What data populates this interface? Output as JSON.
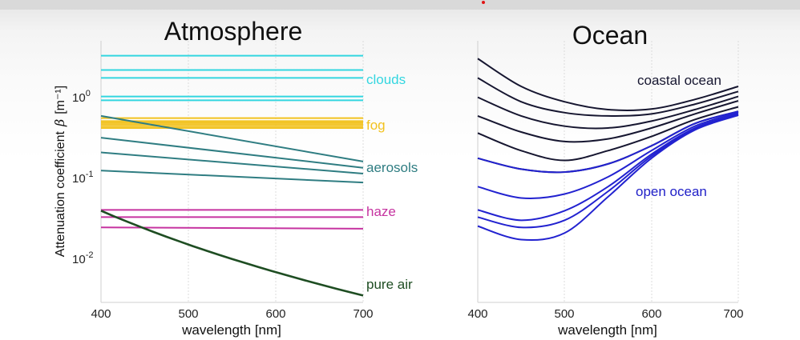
{
  "chart_data": [
    {
      "type": "line",
      "title": "Atmosphere",
      "xlabel": "wavelength [nm]",
      "ylabel": "Attenuation coefficient",
      "ylabel_symbol": "β",
      "ylabel_unit": "[m⁻¹]",
      "y_scale": "log",
      "xlim": [
        400,
        700
      ],
      "ylim": [
        0.004,
        4
      ],
      "xticks": [
        "400",
        "500",
        "600",
        "700"
      ],
      "yticks": [
        {
          "value": 1,
          "base": "10",
          "exp": "0"
        },
        {
          "value": 0.1,
          "base": "10",
          "exp": "-1"
        },
        {
          "value": 0.01,
          "base": "10",
          "exp": "-2"
        }
      ],
      "x": [
        400,
        700
      ],
      "groups": [
        {
          "label": "clouds",
          "color": "#33d6e0",
          "series": [
            {
              "values": [
                2.7,
                2.7
              ]
            },
            {
              "values": [
                1.85,
                1.85
              ]
            },
            {
              "values": [
                1.5,
                1.5
              ]
            },
            {
              "values": [
                0.92,
                0.92
              ]
            },
            {
              "values": [
                0.83,
                0.83
              ]
            }
          ]
        },
        {
          "label": "fog",
          "color": "#f2c21e",
          "series": [
            {
              "values": [
                0.52,
                0.52
              ]
            },
            {
              "values": [
                0.48,
                0.48
              ]
            },
            {
              "values": [
                0.46,
                0.46
              ]
            },
            {
              "values": [
                0.44,
                0.44
              ]
            },
            {
              "values": [
                0.42,
                0.42
              ]
            },
            {
              "values": [
                0.4,
                0.4
              ]
            }
          ]
        },
        {
          "label": "aerosols",
          "color": "#2f7d82",
          "series": [
            {
              "values": [
                0.55,
                0.165
              ]
            },
            {
              "values": [
                0.31,
                0.14
              ]
            },
            {
              "values": [
                0.21,
                0.12
              ]
            },
            {
              "values": [
                0.13,
                0.095
              ]
            }
          ]
        },
        {
          "label": "haze",
          "color": "#c633a0",
          "series": [
            {
              "values": [
                0.046,
                0.046
              ]
            },
            {
              "values": [
                0.038,
                0.038
              ]
            },
            {
              "values": [
                0.029,
                0.028
              ]
            }
          ]
        },
        {
          "label": "pure air",
          "color": "#1e4d22",
          "series": [
            {
              "values": [
                0.045,
                0.0048
              ]
            }
          ]
        }
      ]
    },
    {
      "type": "line",
      "title": "Ocean",
      "xlabel": "wavelength [nm]",
      "xlim": [
        400,
        700
      ],
      "xticks": [
        "400",
        "500",
        "600",
        "700"
      ],
      "ylim": [
        0.004,
        4
      ],
      "y_scale": "log",
      "annotations": [
        {
          "text": "coastal ocean",
          "color": "#161630"
        },
        {
          "text": "open ocean",
          "color": "#2020c8"
        }
      ],
      "x": [
        400,
        450,
        500,
        550,
        600,
        650,
        700
      ],
      "series": [
        {
          "group": "coastal",
          "values": [
            2.5,
            1.2,
            0.8,
            0.65,
            0.66,
            0.85,
            1.2
          ]
        },
        {
          "group": "coastal",
          "values": [
            1.5,
            0.8,
            0.6,
            0.55,
            0.58,
            0.75,
            1.05
          ]
        },
        {
          "group": "coastal",
          "values": [
            0.9,
            0.55,
            0.42,
            0.4,
            0.48,
            0.65,
            0.92
          ]
        },
        {
          "group": "coastal",
          "values": [
            0.55,
            0.36,
            0.28,
            0.3,
            0.4,
            0.58,
            0.82
          ]
        },
        {
          "group": "coastal",
          "values": [
            0.35,
            0.22,
            0.17,
            0.22,
            0.32,
            0.5,
            0.7
          ]
        },
        {
          "group": "coastal",
          "values": [
            0.18,
            0.135,
            0.125,
            0.155,
            0.25,
            0.45,
            0.62
          ]
        },
        {
          "group": "open",
          "values": [
            0.18,
            0.135,
            0.125,
            0.155,
            0.25,
            0.45,
            0.62
          ]
        },
        {
          "group": "open",
          "values": [
            0.085,
            0.063,
            0.07,
            0.11,
            0.22,
            0.42,
            0.6
          ]
        },
        {
          "group": "open",
          "values": [
            0.046,
            0.035,
            0.045,
            0.085,
            0.2,
            0.4,
            0.58
          ]
        },
        {
          "group": "open",
          "values": [
            0.038,
            0.029,
            0.035,
            0.075,
            0.19,
            0.39,
            0.57
          ]
        },
        {
          "group": "open",
          "values": [
            0.03,
            0.021,
            0.025,
            0.065,
            0.18,
            0.38,
            0.56
          ]
        }
      ],
      "colors": {
        "coastal": "#161630",
        "open": "#2222d0"
      }
    }
  ]
}
